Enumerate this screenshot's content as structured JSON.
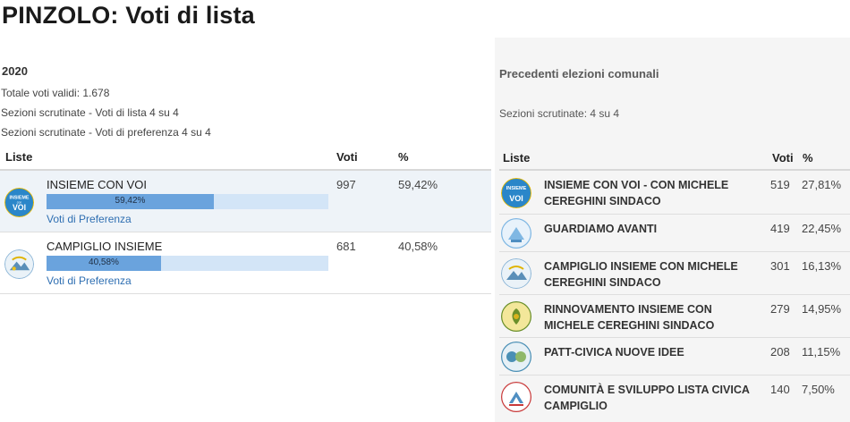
{
  "page": {
    "title": "PINZOLO: Voti di lista"
  },
  "current": {
    "year": "2020",
    "total_label": "Totale voti validi: 1.678",
    "sezioni_lista": "Sezioni scrutinate - Voti di lista 4 su 4",
    "sezioni_preferenza": "Sezioni scrutinate - Voti di preferenza 4 su 4",
    "headers": {
      "liste": "Liste",
      "voti": "Voti",
      "perc": "%"
    },
    "rows": [
      {
        "name": "INSIEME CON VOI",
        "voti": "997",
        "perc": "59,42%",
        "bar_label": "59,42%",
        "share": 0.5942,
        "pref_link": "Voti di Preferenza",
        "logo_text": "INSIEME VOI",
        "logo_color": "#2a86c9"
      },
      {
        "name": "CAMPIGLIO INSIEME",
        "voti": "681",
        "perc": "40,58%",
        "bar_label": "40,58%",
        "share": 0.4058,
        "pref_link": "Voti di Preferenza",
        "logo_color": "#8ab4d6"
      }
    ]
  },
  "previous": {
    "title": "Precedenti elezioni comunali",
    "sezioni": "Sezioni scrutinate: 4 su 4",
    "headers": {
      "liste": "Liste",
      "voti": "Voti",
      "perc": "%"
    },
    "rows": [
      {
        "name": "INSIEME CON VOI - CON MICHELE CEREGHINI SINDACO",
        "voti": "519",
        "perc": "27,81%",
        "logo_color": "#2a86c9"
      },
      {
        "name": "GUARDIAMO AVANTI",
        "voti": "419",
        "perc": "22,45%",
        "logo_color": "#7fb7e3"
      },
      {
        "name": "CAMPIGLIO INSIEME CON MICHELE CEREGHINI SINDACO",
        "voti": "301",
        "perc": "16,13%",
        "logo_color": "#8ab4d6"
      },
      {
        "name": "RINNOVAMENTO INSIEME CON MICHELE CEREGHINI SINDACO",
        "voti": "279",
        "perc": "14,95%",
        "logo_color": "#6a8f2a"
      },
      {
        "name": "PATT-CIVICA NUOVE IDEE",
        "voti": "208",
        "perc": "11,15%",
        "logo_color": "#4a8fb5"
      },
      {
        "name": "COMUNITÀ E SVILUPPO LISTA CIVICA CAMPIGLIO",
        "voti": "140",
        "perc": "7,50%",
        "logo_color": "#c93a3a"
      }
    ]
  }
}
